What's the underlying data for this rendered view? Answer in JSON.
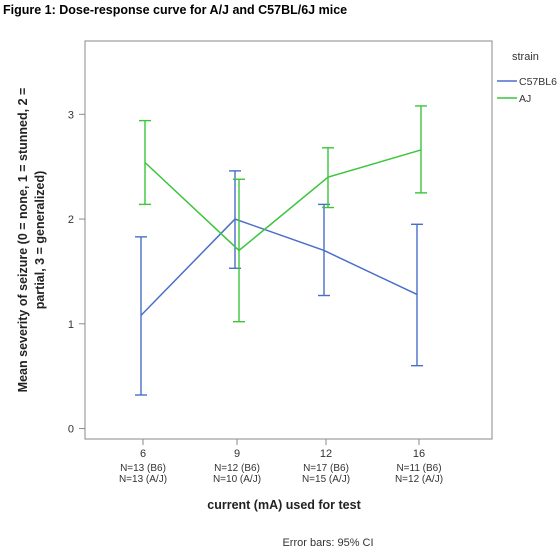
{
  "figure_title": "Figure 1: Dose-response curve for A/J and C57BL/6J mice",
  "chart_data": {
    "type": "line",
    "xlabel": "current (mA) used for test",
    "ylabel_lines": [
      "Mean severity of seizure (0 = none, 1 = stunned, 2 =",
      "partial, 3 = generalized)"
    ],
    "ylim": [
      -0.1,
      3.7
    ],
    "yticks": [
      0,
      1,
      2,
      3
    ],
    "categories": [
      "6",
      "9",
      "12",
      "16"
    ],
    "n_labels": [
      [
        "N=13 (B6)",
        "N=13 (A/J)"
      ],
      [
        "N=12 (B6)",
        "N=10 (A/J)"
      ],
      [
        "N=17 (B6)",
        "N=15 (A/J)"
      ],
      [
        "N=11 (B6)",
        "N=12 (A/J)"
      ]
    ],
    "legend_title": "strain",
    "legend_position": "right, outside plot",
    "grid": false,
    "footnote": "Error bars: 95% CI",
    "series": [
      {
        "name": "C57BL6",
        "color": "#4a6fc8",
        "values": [
          1.08,
          2.0,
          1.7,
          1.28
        ],
        "ci_low": [
          0.32,
          1.53,
          1.27,
          0.6
        ],
        "ci_high": [
          1.83,
          2.46,
          2.14,
          1.95
        ]
      },
      {
        "name": "AJ",
        "color": "#3cc43c",
        "values": [
          2.54,
          1.7,
          2.4,
          2.66
        ],
        "ci_low": [
          2.14,
          1.02,
          2.11,
          2.25
        ],
        "ci_high": [
          2.94,
          2.38,
          2.68,
          3.08
        ]
      }
    ]
  }
}
